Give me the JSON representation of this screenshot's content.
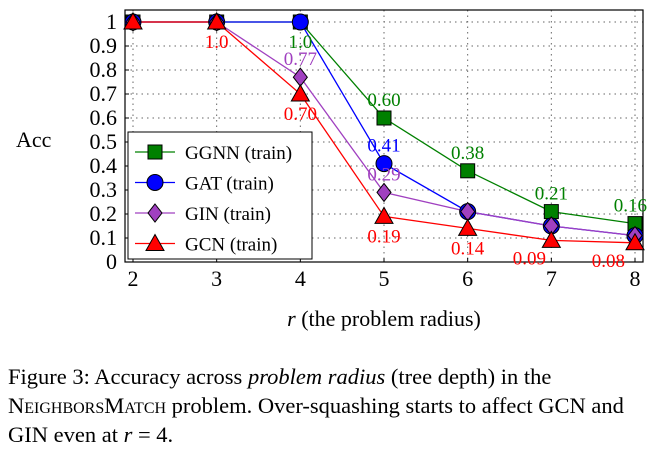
{
  "chart_data": {
    "type": "line",
    "ylabel": "Acc",
    "xlabel_var": "r",
    "xlabel_rest": " (the problem radius)",
    "x": [
      2,
      3,
      4,
      5,
      6,
      7,
      8
    ],
    "xlim": [
      2,
      8
    ],
    "ylim": [
      0,
      1
    ],
    "xticks": [
      "2",
      "3",
      "4",
      "5",
      "6",
      "7",
      "8"
    ],
    "yticks": [
      "0",
      "0.1",
      "0.2",
      "0.3",
      "0.4",
      "0.5",
      "0.6",
      "0.7",
      "0.8",
      "0.9",
      "1"
    ],
    "grid": true,
    "legend_position": "bottom-left",
    "series": [
      {
        "name": "GGNN (train)",
        "color": "#008000",
        "marker": "square",
        "values": [
          1,
          1,
          1,
          0.6,
          0.38,
          0.21,
          0.16
        ]
      },
      {
        "name": "GAT (train)",
        "color": "#0000ff",
        "marker": "circle",
        "values": [
          1,
          1,
          1,
          0.41,
          0.21,
          0.15,
          0.11
        ]
      },
      {
        "name": "GIN (train)",
        "color": "#a040c0",
        "marker": "diamond",
        "values": [
          1,
          1,
          0.77,
          0.29,
          0.21,
          0.15,
          0.11
        ]
      },
      {
        "name": "GCN (train)",
        "color": "#ff0000",
        "marker": "triangle",
        "values": [
          1,
          1,
          0.7,
          0.19,
          0.14,
          0.09,
          0.08
        ]
      }
    ],
    "annotations": [
      {
        "text": "1.0",
        "x": 3,
        "y": 1,
        "series": "GCN (train)",
        "pos": "below"
      },
      {
        "text": "1.0",
        "x": 4,
        "y": 1,
        "series": "GGNN (train)",
        "pos": "below"
      },
      {
        "text": "0.77",
        "x": 4,
        "y": 0.77,
        "series": "GIN (train)",
        "pos": "above"
      },
      {
        "text": "0.70",
        "x": 4,
        "y": 0.7,
        "series": "GCN (train)",
        "pos": "below"
      },
      {
        "text": "0.60",
        "x": 5,
        "y": 0.6,
        "series": "GGNN (train)",
        "pos": "above"
      },
      {
        "text": "0.41",
        "x": 5,
        "y": 0.41,
        "series": "GAT (train)",
        "pos": "above"
      },
      {
        "text": "0.29",
        "x": 5,
        "y": 0.29,
        "series": "GIN (train)",
        "pos": "above"
      },
      {
        "text": "0.19",
        "x": 5,
        "y": 0.19,
        "series": "GCN (train)",
        "pos": "below"
      },
      {
        "text": "0.38",
        "x": 6,
        "y": 0.38,
        "series": "GGNN (train)",
        "pos": "above"
      },
      {
        "text": "0.14",
        "x": 6,
        "y": 0.14,
        "series": "GCN (train)",
        "pos": "below"
      },
      {
        "text": "0.21",
        "x": 7,
        "y": 0.21,
        "series": "GGNN (train)",
        "pos": "above"
      },
      {
        "text": "0.09",
        "x": 7,
        "y": 0.09,
        "series": "GCN (train)",
        "pos": "below-left"
      },
      {
        "text": "0.16",
        "x": 8,
        "y": 0.16,
        "series": "GGNN (train)",
        "pos": "above"
      },
      {
        "text": "0.08",
        "x": 8,
        "y": 0.08,
        "series": "GCN (train)",
        "pos": "below-left"
      }
    ]
  },
  "caption": {
    "label": "Figure 3:",
    "t1": " Accuracy across ",
    "em": "problem radius",
    "t2": " (tree depth) in the ",
    "sc": "NeighborsMatch",
    "t3": " problem. Over-squashing starts to affect GCN and GIN even at ",
    "var": "r",
    "t4": " = 4."
  }
}
